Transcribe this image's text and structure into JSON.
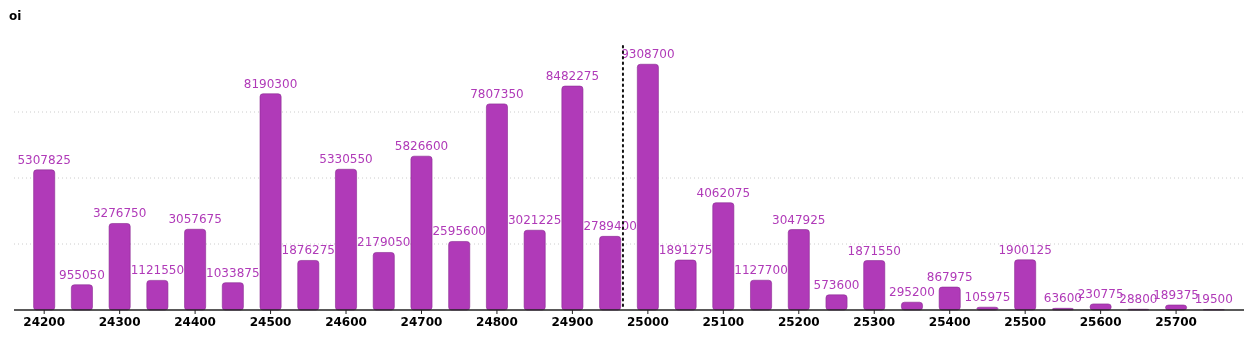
{
  "chart_data": {
    "type": "bar",
    "ylabel": "oi",
    "color": "#b03ab8",
    "x": [
      24200,
      24250,
      24300,
      24350,
      24400,
      24450,
      24500,
      24550,
      24600,
      24650,
      24700,
      24750,
      24800,
      24850,
      24900,
      24950,
      25000,
      25050,
      25100,
      25150,
      25200,
      25250,
      25300,
      25350,
      25400,
      25450,
      25500,
      25550,
      25600,
      25650,
      25700,
      25750
    ],
    "values": [
      5307825,
      955050,
      3276750,
      1121550,
      3057675,
      1033875,
      8190300,
      1876275,
      5330550,
      2179050,
      5826600,
      2595600,
      7807350,
      3021225,
      8482275,
      2789400,
      9308700,
      1891275,
      4062075,
      1127700,
      3047925,
      573600,
      1871550,
      295200,
      867975,
      105975,
      1900125,
      63600,
      230775,
      28800,
      189375,
      19500
    ],
    "xlim": [
      24160,
      25790
    ],
    "xticks": [
      24200,
      24300,
      24400,
      24500,
      24600,
      24700,
      24800,
      24900,
      25000,
      25100,
      25200,
      25300,
      25400,
      25500,
      25600,
      25700
    ],
    "ylim": [
      0,
      10000000
    ],
    "yticks": [
      {
        "value": 2500000,
        "label": null
      },
      {
        "value": 5000000,
        "label": null
      },
      {
        "value": 7500000,
        "label": null
      }
    ],
    "tick_labels": "x",
    "grid": "y",
    "data_labels": true,
    "ref_lines": [
      {
        "axis": "x",
        "value": 24967,
        "line_style": "dotted",
        "color": "#111111"
      }
    ]
  }
}
